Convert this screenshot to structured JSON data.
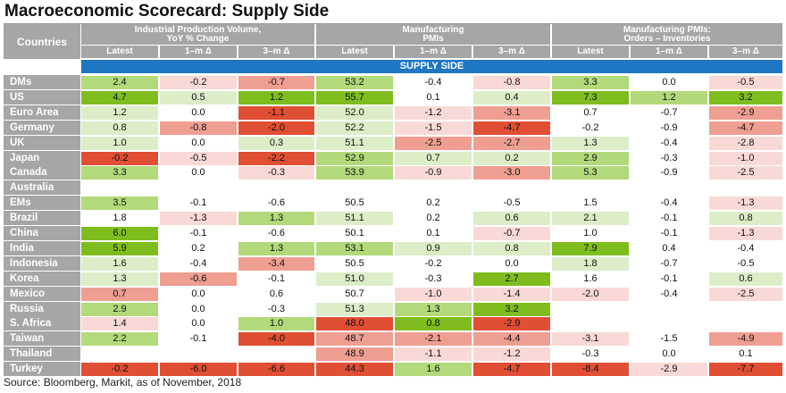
{
  "title": "Macroeconomic Scorecard: Supply Side",
  "header": {
    "countries_label": "Countries",
    "groups": [
      {
        "line1": "Industrial Production Volume,",
        "line2": "YoY % Change"
      },
      {
        "line1": "Manufacturing",
        "line2": "PMIs"
      },
      {
        "line1": "Manufacturing PMIs:",
        "line2": "Orders – Inventories"
      }
    ],
    "subheaders": [
      "Latest",
      "1–m Δ",
      "3–m Δ",
      "Latest",
      "1–m Δ",
      "3–m Δ",
      "Latest",
      "1–m Δ",
      "3–m Δ"
    ],
    "band": "SUPPLY SIDE"
  },
  "colors": {
    "header_gray": "#a6a6a6",
    "band_blue": "#1f77c4",
    "strong_green": "#7fbd1f",
    "light_green": "#b2d97a",
    "pale_green": "#dcedc8",
    "pale_red": "#f9d9d5",
    "light_red": "#ef9e92",
    "strong_red": "#e04e34",
    "neutral": "#ffffff"
  },
  "rows": [
    {
      "country": "DMs",
      "values": [
        "2.4",
        "-0.2",
        "-0.7",
        "53.2",
        "-0.4",
        "-0.8",
        "3.3",
        "0.0",
        "-0.5"
      ],
      "shades": [
        "lg",
        "pr",
        "lr",
        "lg",
        "n",
        "pr",
        "lg",
        "n",
        "pr"
      ]
    },
    {
      "country": "US",
      "values": [
        "4.7",
        "0.5",
        "1.2",
        "55.7",
        "0.1",
        "0.4",
        "7.3",
        "1.2",
        "3.2"
      ],
      "shades": [
        "sg",
        "pg",
        "sg",
        "sg",
        "n",
        "pg",
        "sg",
        "lg",
        "sg"
      ]
    },
    {
      "country": "Euro Area",
      "values": [
        "1.2",
        "0.0",
        "-1.1",
        "52.0",
        "-1.2",
        "-3.1",
        "0.7",
        "-0.7",
        "-2.9"
      ],
      "shades": [
        "pg",
        "n",
        "sr",
        "pg",
        "pr",
        "lr",
        "n",
        "n",
        "lr"
      ]
    },
    {
      "country": "Germany",
      "values": [
        "0.8",
        "-0.8",
        "-2.0",
        "52.2",
        "-1.5",
        "-4.7",
        "-0.2",
        "-0.9",
        "-4.7"
      ],
      "shades": [
        "pg",
        "lr",
        "sr",
        "pg",
        "pr",
        "sr",
        "n",
        "n",
        "lr"
      ]
    },
    {
      "country": "UK",
      "values": [
        "1.0",
        "0.0",
        "0.3",
        "51.1",
        "-2.5",
        "-2.7",
        "1.3",
        "-0.4",
        "-2.8"
      ],
      "shades": [
        "pg",
        "n",
        "pg",
        "pg",
        "lr",
        "lr",
        "pg",
        "n",
        "pr"
      ]
    },
    {
      "country": "Japan",
      "values": [
        "-0.2",
        "-0.5",
        "-2.2",
        "52.9",
        "0.7",
        "0.2",
        "2.9",
        "-0.3",
        "-1.0"
      ],
      "shades": [
        "sr",
        "pr",
        "sr",
        "lg",
        "pg",
        "pg",
        "lg",
        "n",
        "pr"
      ]
    },
    {
      "country": "Canada",
      "values": [
        "3.3",
        "0.0",
        "-0.3",
        "53.9",
        "-0.9",
        "-3.0",
        "5.3",
        "-0.9",
        "-2.5"
      ],
      "shades": [
        "lg",
        "n",
        "pr",
        "lg",
        "pr",
        "lr",
        "lg",
        "n",
        "pr"
      ]
    },
    {
      "country": "Australia",
      "values": [
        "",
        "",
        "",
        "",
        "",
        "",
        "",
        "",
        ""
      ],
      "shades": [
        "n",
        "n",
        "n",
        "n",
        "n",
        "n",
        "n",
        "n",
        "n"
      ]
    },
    {
      "country": "EMs",
      "values": [
        "3.5",
        "-0.1",
        "-0.6",
        "50.5",
        "0.2",
        "-0.5",
        "1.5",
        "-0.4",
        "-1.3"
      ],
      "shades": [
        "lg",
        "n",
        "n",
        "n",
        "n",
        "n",
        "n",
        "n",
        "pr"
      ]
    },
    {
      "country": "Brazil",
      "values": [
        "1.8",
        "-1.3",
        "1.3",
        "51.1",
        "0.2",
        "0.6",
        "2.1",
        "-0.1",
        "0.8"
      ],
      "shades": [
        "n",
        "pr",
        "lg",
        "pg",
        "n",
        "pg",
        "pg",
        "n",
        "pg"
      ]
    },
    {
      "country": "China",
      "values": [
        "6.0",
        "-0.1",
        "-0.6",
        "50.1",
        "0.1",
        "-0.7",
        "1.0",
        "-0.1",
        "-1.3"
      ],
      "shades": [
        "sg",
        "n",
        "n",
        "n",
        "n",
        "pr",
        "n",
        "n",
        "pr"
      ]
    },
    {
      "country": "India",
      "values": [
        "5.9",
        "0.2",
        "1.3",
        "53.1",
        "0.9",
        "0.8",
        "7.9",
        "0.4",
        "-0.4"
      ],
      "shades": [
        "sg",
        "n",
        "lg",
        "lg",
        "pg",
        "pg",
        "sg",
        "n",
        "n"
      ]
    },
    {
      "country": "Indonesia",
      "values": [
        "1.6",
        "-0.4",
        "-3.4",
        "50.5",
        "-0.2",
        "0.0",
        "1.8",
        "-0.7",
        "-0.5"
      ],
      "shades": [
        "pg",
        "n",
        "lr",
        "n",
        "n",
        "n",
        "pg",
        "n",
        "n"
      ]
    },
    {
      "country": "Korea",
      "values": [
        "1.3",
        "-0.6",
        "-0.1",
        "51.0",
        "-0.3",
        "2.7",
        "1.6",
        "-0.1",
        "0.6"
      ],
      "shades": [
        "pg",
        "lr",
        "n",
        "pg",
        "n",
        "sg",
        "n",
        "n",
        "pg"
      ]
    },
    {
      "country": "Mexico",
      "values": [
        "0.7",
        "0.0",
        "0.6",
        "50.7",
        "-1.0",
        "-1.4",
        "-2.0",
        "-0.4",
        "-2.5"
      ],
      "shades": [
        "lr",
        "n",
        "n",
        "n",
        "pr",
        "pr",
        "pr",
        "n",
        "pr"
      ]
    },
    {
      "country": "Russia",
      "values": [
        "2.9",
        "0.0",
        "-0.3",
        "51.3",
        "1.3",
        "3.2",
        "",
        "",
        ""
      ],
      "shades": [
        "lg",
        "n",
        "n",
        "pg",
        "lg",
        "sg",
        "n",
        "n",
        "n"
      ]
    },
    {
      "country": "S. Africa",
      "values": [
        "1.4",
        "0.0",
        "1.0",
        "48.0",
        "0.8",
        "-2.9",
        "",
        "",
        ""
      ],
      "shades": [
        "pr",
        "n",
        "lg",
        "sr",
        "sg",
        "sr",
        "n",
        "n",
        "n"
      ]
    },
    {
      "country": "Taiwan",
      "values": [
        "2.2",
        "-0.1",
        "-4.0",
        "48.7",
        "-2.1",
        "-4.4",
        "-3.1",
        "-1.5",
        "-4.9"
      ],
      "shades": [
        "lg",
        "n",
        "sr",
        "lr",
        "lr",
        "lr",
        "pr",
        "n",
        "lr"
      ]
    },
    {
      "country": "Thailand",
      "values": [
        "",
        "",
        "",
        "48.9",
        "-1.1",
        "-1.2",
        "-0.3",
        "0.0",
        "0.1"
      ],
      "shades": [
        "n",
        "n",
        "n",
        "lr",
        "pr",
        "pr",
        "n",
        "n",
        "n"
      ]
    },
    {
      "country": "Turkey",
      "values": [
        "-0.2",
        "-6.0",
        "-6.6",
        "44.3",
        "1.6",
        "-4.7",
        "-8.4",
        "-2.9",
        "-7.7"
      ],
      "shades": [
        "sr",
        "sr",
        "sr",
        "sr",
        "lg",
        "sr",
        "sr",
        "pr",
        "sr"
      ]
    }
  ],
  "source": "Source: Bloomberg, Markit, as of November, 2018"
}
